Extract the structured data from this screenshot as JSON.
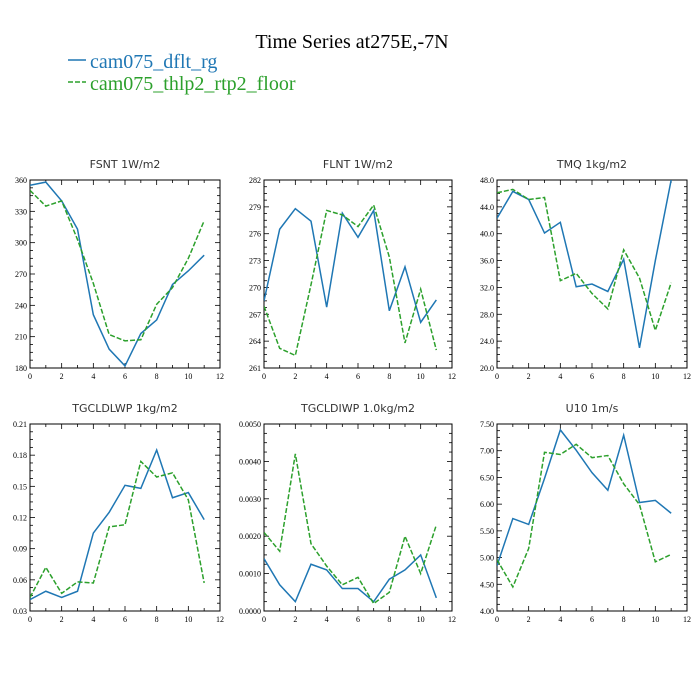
{
  "figure": {
    "title": "Time Series at275E,-7N",
    "legend": [
      {
        "label": "cam075_dflt_rg",
        "color": "#1f77b4",
        "dash": "solid"
      },
      {
        "label": "cam075_thlp2_rtp2_floor",
        "color": "#2ca02c",
        "dash": "dashed"
      }
    ]
  },
  "chart_data": [
    {
      "type": "line",
      "title": "FSNT   1W/m2",
      "x": [
        0,
        1,
        2,
        3,
        4,
        5,
        6,
        7,
        8,
        9,
        10,
        11
      ],
      "xlim": [
        0,
        12
      ],
      "xticks": [
        "0",
        "2",
        "4",
        "6",
        "8",
        "10",
        "12"
      ],
      "ylim": [
        180,
        360
      ],
      "yticks": [
        "180",
        "210",
        "240",
        "270",
        "300",
        "330",
        "360"
      ],
      "series": [
        {
          "name": "cam075_dflt_rg",
          "values": [
            355,
            358,
            340,
            313,
            231,
            198,
            182,
            213,
            226,
            260,
            273,
            288
          ]
        },
        {
          "name": "cam075_thlp2_rtp2_floor",
          "values": [
            350,
            335,
            340,
            303,
            261,
            212,
            206,
            207,
            241,
            257,
            285,
            321
          ]
        }
      ]
    },
    {
      "type": "line",
      "title": "FLNT   1W/m2",
      "x": [
        0,
        1,
        2,
        3,
        4,
        5,
        6,
        7,
        8,
        9,
        10,
        11
      ],
      "xlim": [
        0,
        12
      ],
      "xticks": [
        "0",
        "2",
        "4",
        "6",
        "8",
        "10",
        "12"
      ],
      "ylim": [
        261,
        282
      ],
      "yticks": [
        "261",
        "264",
        "267",
        "270",
        "273",
        "276",
        "279",
        "282"
      ],
      "series": [
        {
          "name": "cam075_dflt_rg",
          "values": [
            268.5,
            276.5,
            278.8,
            277.4,
            267.8,
            278.3,
            275.6,
            278.6,
            267.4,
            272.3,
            266.1,
            268.6
          ]
        },
        {
          "name": "cam075_thlp2_rtp2_floor",
          "values": [
            267.9,
            263.2,
            262.4,
            270.3,
            278.6,
            278.1,
            276.8,
            279.2,
            273.4,
            263.8,
            269.8,
            263.0
          ]
        }
      ]
    },
    {
      "type": "line",
      "title": "TMQ   1kg/m2",
      "x": [
        0,
        1,
        2,
        3,
        4,
        5,
        6,
        7,
        8,
        9,
        10,
        11
      ],
      "xlim": [
        0,
        12
      ],
      "xticks": [
        "0",
        "2",
        "4",
        "6",
        "8",
        "10",
        "12"
      ],
      "ylim": [
        20.0,
        48.0
      ],
      "yticks": [
        "20.0",
        "24.0",
        "28.0",
        "32.0",
        "36.0",
        "40.0",
        "44.0",
        "48.0"
      ],
      "series": [
        {
          "name": "cam075_dflt_rg",
          "values": [
            42.3,
            46.3,
            45.1,
            40.1,
            41.7,
            32.1,
            32.5,
            31.4,
            36.2,
            23.0,
            36.0,
            48.0
          ]
        },
        {
          "name": "cam075_thlp2_rtp2_floor",
          "values": [
            46.1,
            46.6,
            45.1,
            45.4,
            33.0,
            34.1,
            31.1,
            28.8,
            37.6,
            33.4,
            25.6,
            32.7
          ]
        }
      ]
    },
    {
      "type": "line",
      "title": "TGCLDLWP   1kg/m2",
      "x": [
        0,
        1,
        2,
        3,
        4,
        5,
        6,
        7,
        8,
        9,
        10,
        11
      ],
      "xlim": [
        0,
        12
      ],
      "xticks": [
        "0",
        "2",
        "4",
        "6",
        "8",
        "10",
        "12"
      ],
      "ylim": [
        0.03,
        0.21
      ],
      "yticks": [
        "0.03",
        "0.06",
        "0.09",
        "0.12",
        "0.15",
        "0.18",
        "0.21"
      ],
      "series": [
        {
          "name": "cam075_dflt_rg",
          "values": [
            0.041,
            0.049,
            0.043,
            0.049,
            0.105,
            0.125,
            0.151,
            0.148,
            0.185,
            0.139,
            0.144,
            0.118
          ]
        },
        {
          "name": "cam075_thlp2_rtp2_floor",
          "values": [
            0.043,
            0.072,
            0.047,
            0.058,
            0.057,
            0.111,
            0.113,
            0.174,
            0.159,
            0.163,
            0.137,
            0.057
          ]
        }
      ]
    },
    {
      "type": "line",
      "title": "TGCLDIWP   1.0kg/m2",
      "x": [
        0,
        1,
        2,
        3,
        4,
        5,
        6,
        7,
        8,
        9,
        10,
        11
      ],
      "xlim": [
        0,
        12
      ],
      "xticks": [
        "0",
        "2",
        "4",
        "6",
        "8",
        "10",
        "12"
      ],
      "ylim": [
        0.0,
        0.005
      ],
      "yticks": [
        "0.0000",
        "0.0010",
        "0.0020",
        "0.0030",
        "0.0040",
        "0.0050"
      ],
      "series": [
        {
          "name": "cam075_dflt_rg",
          "values": [
            0.0014,
            0.0007,
            0.00025,
            0.00125,
            0.0011,
            0.0006,
            0.0006,
            0.00025,
            0.00085,
            0.0011,
            0.0015,
            0.00035
          ]
        },
        {
          "name": "cam075_thlp2_rtp2_floor",
          "values": [
            0.0021,
            0.0016,
            0.0042,
            0.0018,
            0.0012,
            0.0007,
            0.0009,
            0.0002,
            0.0005,
            0.002,
            0.001,
            0.0023
          ]
        }
      ]
    },
    {
      "type": "line",
      "title": "U10   1m/s",
      "x": [
        0,
        1,
        2,
        3,
        4,
        5,
        6,
        7,
        8,
        9,
        10,
        11
      ],
      "xlim": [
        0,
        12
      ],
      "xticks": [
        "0",
        "2",
        "4",
        "6",
        "8",
        "10",
        "12"
      ],
      "ylim": [
        4.0,
        7.5
      ],
      "yticks": [
        "4.00",
        "4.50",
        "5.00",
        "5.50",
        "6.00",
        "6.50",
        "7.00",
        "7.50"
      ],
      "series": [
        {
          "name": "cam075_dflt_rg",
          "values": [
            4.85,
            5.73,
            5.62,
            6.48,
            7.39,
            7.01,
            6.59,
            6.26,
            7.29,
            6.03,
            6.07,
            5.83
          ]
        },
        {
          "name": "cam075_thlp2_rtp2_floor",
          "values": [
            4.96,
            4.45,
            5.17,
            6.97,
            6.93,
            7.12,
            6.87,
            6.91,
            6.38,
            5.99,
            4.92,
            5.06
          ]
        }
      ]
    }
  ]
}
